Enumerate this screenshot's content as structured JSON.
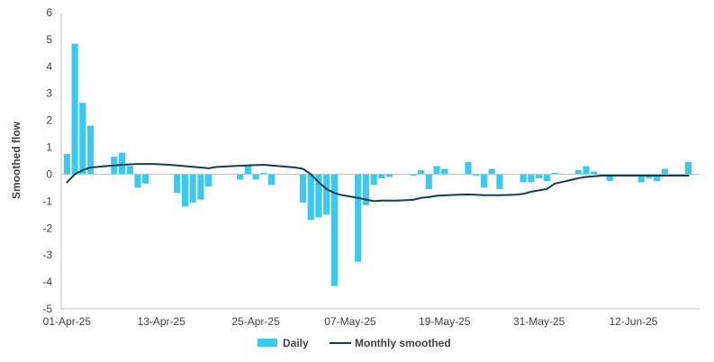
{
  "chart_data": {
    "type": "bar+line",
    "ylabel": "Smoothed flow",
    "xlabel": "",
    "ylim": [
      -5,
      6
    ],
    "yticks": [
      -5,
      -4,
      -3,
      -2,
      -1,
      0,
      1,
      2,
      3,
      4,
      5,
      6
    ],
    "x_tick_labels": [
      "01-Apr-25",
      "13-Apr-25",
      "25-Apr-25",
      "07-May-25",
      "19-May-25",
      "31-May-25",
      "12-Jun-25"
    ],
    "x_tick_day_index": [
      0,
      12,
      24,
      36,
      48,
      60,
      72
    ],
    "x_day_range": [
      0,
      79
    ],
    "grid": false,
    "legend": "bottom",
    "colors": {
      "daily": "#3DC8EE",
      "smoothed": "#0E3F52",
      "axis": "#BFBFBF"
    },
    "series": [
      {
        "name": "Daily",
        "kind": "bar",
        "values": [
          [
            0,
            0.75
          ],
          [
            1,
            4.85
          ],
          [
            2,
            2.65
          ],
          [
            3,
            1.8
          ],
          [
            6,
            0.65
          ],
          [
            7,
            0.8
          ],
          [
            8,
            0.3
          ],
          [
            9,
            -0.5
          ],
          [
            10,
            -0.35
          ],
          [
            14,
            -0.7
          ],
          [
            15,
            -1.2
          ],
          [
            16,
            -1.05
          ],
          [
            17,
            -0.95
          ],
          [
            18,
            -0.45
          ],
          [
            22,
            -0.2
          ],
          [
            23,
            0.35
          ],
          [
            24,
            -0.2
          ],
          [
            25,
            0.05
          ],
          [
            26,
            -0.4
          ],
          [
            30,
            -1.05
          ],
          [
            31,
            -1.7
          ],
          [
            32,
            -1.6
          ],
          [
            33,
            -1.5
          ],
          [
            34,
            -4.15
          ],
          [
            37,
            -3.25
          ],
          [
            38,
            -1.15
          ],
          [
            39,
            -0.4
          ],
          [
            40,
            -0.15
          ],
          [
            41,
            -0.1
          ],
          [
            44,
            -0.05
          ],
          [
            45,
            0.15
          ],
          [
            46,
            -0.55
          ],
          [
            47,
            0.3
          ],
          [
            48,
            0.2
          ],
          [
            51,
            0.45
          ],
          [
            52,
            -0.05
          ],
          [
            53,
            -0.5
          ],
          [
            54,
            0.2
          ],
          [
            55,
            -0.55
          ],
          [
            58,
            -0.3
          ],
          [
            59,
            -0.3
          ],
          [
            60,
            -0.15
          ],
          [
            61,
            -0.25
          ],
          [
            62,
            0.05
          ],
          [
            65,
            0.15
          ],
          [
            66,
            0.3
          ],
          [
            67,
            0.1
          ],
          [
            68,
            -0.05
          ],
          [
            69,
            -0.25
          ],
          [
            72,
            -0.05
          ],
          [
            73,
            -0.3
          ],
          [
            74,
            -0.15
          ],
          [
            75,
            -0.25
          ],
          [
            76,
            0.2
          ],
          [
            79,
            0.45
          ]
        ]
      },
      {
        "name": "Monthly smoothed",
        "kind": "line",
        "values": [
          [
            0,
            -0.3
          ],
          [
            1,
            0.0
          ],
          [
            2,
            0.15
          ],
          [
            3,
            0.25
          ],
          [
            5,
            0.3
          ],
          [
            7,
            0.35
          ],
          [
            9,
            0.38
          ],
          [
            11,
            0.38
          ],
          [
            13,
            0.35
          ],
          [
            15,
            0.3
          ],
          [
            17,
            0.25
          ],
          [
            18,
            0.22
          ],
          [
            19,
            0.27
          ],
          [
            21,
            0.3
          ],
          [
            23,
            0.33
          ],
          [
            25,
            0.35
          ],
          [
            27,
            0.3
          ],
          [
            29,
            0.25
          ],
          [
            30,
            0.2
          ],
          [
            31,
            0.0
          ],
          [
            32,
            -0.3
          ],
          [
            33,
            -0.55
          ],
          [
            34,
            -0.7
          ],
          [
            35,
            -0.78
          ],
          [
            37,
            -0.88
          ],
          [
            39,
            -1.0
          ],
          [
            40,
            -0.98
          ],
          [
            42,
            -0.98
          ],
          [
            44,
            -0.95
          ],
          [
            45,
            -0.88
          ],
          [
            46,
            -0.85
          ],
          [
            47,
            -0.8
          ],
          [
            49,
            -0.77
          ],
          [
            51,
            -0.75
          ],
          [
            53,
            -0.78
          ],
          [
            55,
            -0.78
          ],
          [
            57,
            -0.76
          ],
          [
            58,
            -0.73
          ],
          [
            59,
            -0.65
          ],
          [
            60,
            -0.6
          ],
          [
            61,
            -0.55
          ],
          [
            62,
            -0.35
          ],
          [
            64,
            -0.22
          ],
          [
            65,
            -0.15
          ],
          [
            66,
            -0.1
          ],
          [
            68,
            -0.05
          ],
          [
            72,
            -0.05
          ],
          [
            76,
            -0.05
          ],
          [
            79,
            -0.05
          ]
        ]
      }
    ]
  }
}
